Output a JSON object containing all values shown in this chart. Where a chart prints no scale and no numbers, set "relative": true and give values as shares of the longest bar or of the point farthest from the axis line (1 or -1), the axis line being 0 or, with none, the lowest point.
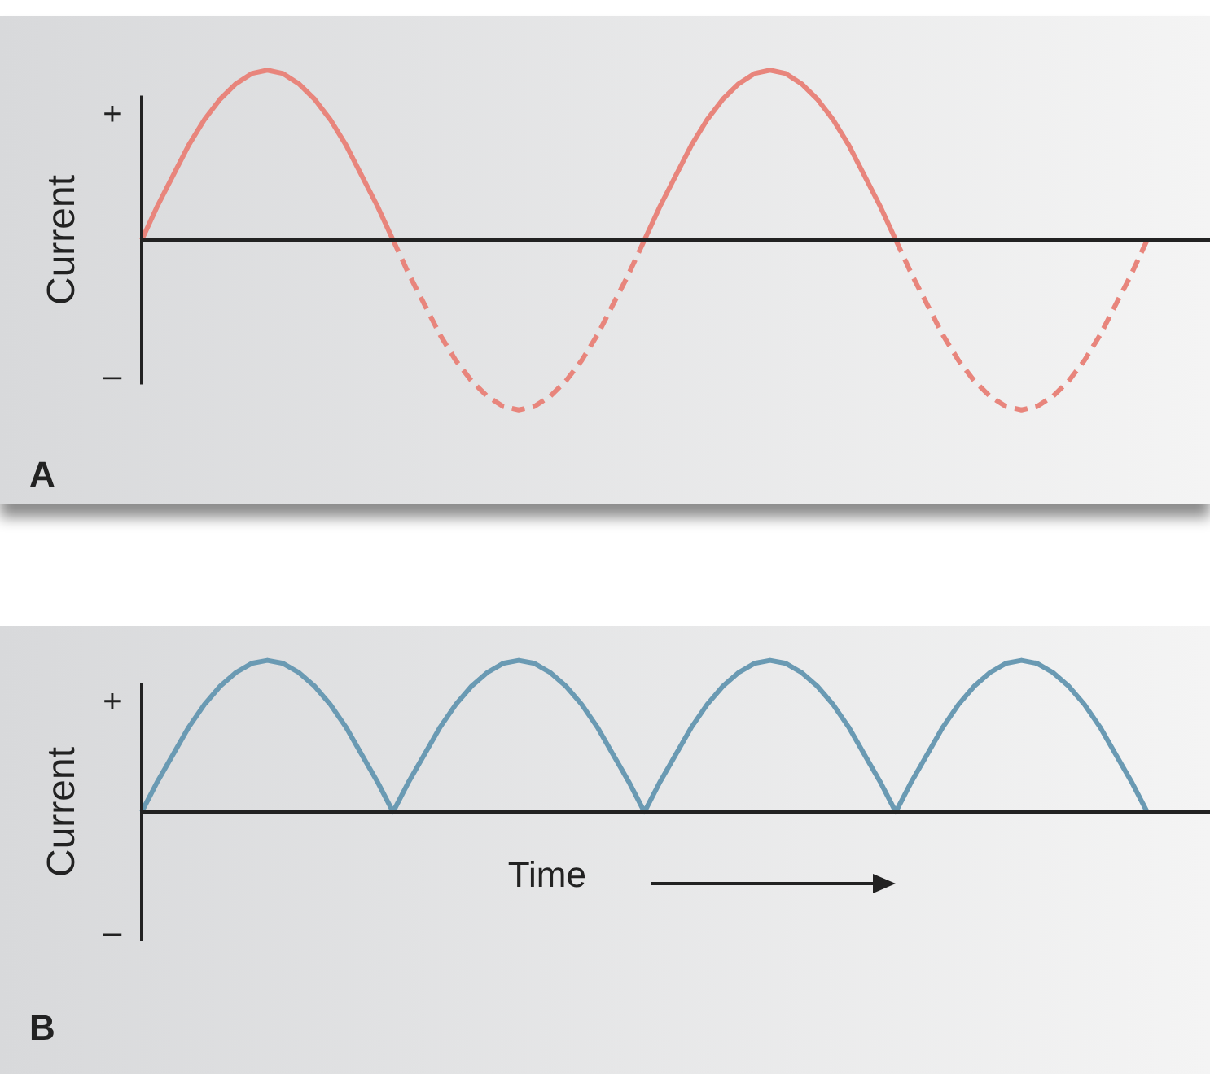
{
  "chart_data": [
    {
      "type": "line",
      "title": "A",
      "ylabel": "Current",
      "annotations": [
        "+",
        "–"
      ],
      "relative": true,
      "legend": false,
      "categories": [
        null,
        null,
        null,
        null,
        null,
        null,
        null,
        null,
        null,
        null,
        null,
        null,
        null,
        null,
        null,
        null,
        null,
        null,
        null,
        null,
        null,
        null,
        null,
        null,
        null,
        null,
        null,
        null,
        null,
        null,
        null,
        null,
        null,
        null,
        null,
        null,
        null,
        null,
        null,
        null,
        null,
        null,
        null,
        null,
        null,
        null,
        null,
        null,
        null,
        null,
        null,
        null,
        null,
        null,
        null,
        null,
        null,
        null,
        null,
        null,
        null,
        null,
        null,
        null,
        null,
        null,
        null,
        null,
        null
      ],
      "series": [
        {
          "color": "#e8857c",
          "line_style": "solid",
          "values": [
            0,
            0.2,
            0.38,
            0.56,
            0.71,
            0.83,
            0.92,
            0.98,
            1,
            0.98,
            0.92,
            0.83,
            0.71,
            0.56,
            0.38,
            0.2,
            0,
            null,
            null,
            null,
            null,
            null,
            null,
            null,
            null,
            null,
            null,
            null,
            null,
            null,
            null,
            null,
            null,
            null,
            null,
            null,
            null,
            null,
            null,
            null,
            null,
            null,
            null,
            null,
            null,
            null,
            null,
            null,
            null,
            null,
            null,
            null,
            null,
            null,
            null,
            null,
            null,
            null,
            null,
            null,
            null,
            null,
            null,
            null,
            null,
            null,
            null,
            null,
            null
          ]
        },
        {
          "color": "#e8857c",
          "line_style": "dashed",
          "values": [
            null,
            null,
            null,
            null,
            null,
            null,
            null,
            null,
            null,
            null,
            null,
            null,
            null,
            null,
            null,
            null,
            0,
            -0.2,
            -0.38,
            -0.56,
            -0.71,
            -0.83,
            -0.92,
            -0.98,
            -1,
            -0.98,
            -0.92,
            -0.83,
            -0.71,
            -0.56,
            -0.38,
            -0.2,
            0,
            null,
            null,
            null,
            null,
            null,
            null,
            null,
            null,
            null,
            null,
            null,
            null,
            null,
            null,
            null,
            null,
            null,
            null,
            null,
            null,
            null,
            null,
            null,
            null,
            null,
            null,
            null,
            null,
            null,
            null,
            null,
            null,
            null,
            null,
            null,
            null
          ]
        },
        {
          "color": "#e8857c",
          "line_style": "solid",
          "values": [
            null,
            null,
            null,
            null,
            null,
            null,
            null,
            null,
            null,
            null,
            null,
            null,
            null,
            null,
            null,
            null,
            null,
            null,
            null,
            null,
            null,
            null,
            null,
            null,
            null,
            null,
            null,
            null,
            null,
            null,
            null,
            null,
            0,
            0.2,
            0.38,
            0.56,
            0.71,
            0.83,
            0.92,
            0.98,
            1,
            0.98,
            0.92,
            0.83,
            0.71,
            0.56,
            0.38,
            0.2,
            0,
            null,
            null,
            null,
            null,
            null,
            null,
            null,
            null,
            null,
            null,
            null,
            null,
            null,
            null,
            null,
            null,
            null,
            null,
            null,
            null
          ]
        },
        {
          "color": "#e8857c",
          "line_style": "dashed",
          "values": [
            null,
            null,
            null,
            null,
            null,
            null,
            null,
            null,
            null,
            null,
            null,
            null,
            null,
            null,
            null,
            null,
            null,
            null,
            null,
            null,
            null,
            null,
            null,
            null,
            null,
            null,
            null,
            null,
            null,
            null,
            null,
            null,
            null,
            null,
            null,
            null,
            null,
            null,
            null,
            null,
            null,
            null,
            null,
            null,
            null,
            null,
            null,
            null,
            0,
            -0.2,
            -0.38,
            -0.56,
            -0.71,
            -0.83,
            -0.92,
            -0.98,
            -1,
            -0.98,
            -0.92,
            -0.83,
            -0.71,
            -0.56,
            -0.38,
            -0.2,
            0,
            null,
            null,
            null,
            null
          ]
        }
      ]
    },
    {
      "type": "line",
      "title": "B",
      "ylabel": "Current",
      "xlabel": "Time",
      "annotations": [
        "+",
        "–"
      ],
      "relative": true,
      "legend": false,
      "categories": [
        null,
        null,
        null,
        null,
        null,
        null,
        null,
        null,
        null,
        null,
        null,
        null,
        null,
        null,
        null,
        null,
        null,
        null,
        null,
        null,
        null,
        null,
        null,
        null,
        null,
        null,
        null,
        null,
        null,
        null,
        null,
        null,
        null,
        null,
        null,
        null,
        null,
        null,
        null,
        null,
        null,
        null,
        null,
        null,
        null,
        null,
        null,
        null,
        null,
        null,
        null,
        null,
        null,
        null,
        null,
        null,
        null,
        null,
        null,
        null,
        null,
        null,
        null,
        null,
        null,
        null,
        null,
        null,
        null
      ],
      "series": [
        {
          "color": "#6a9ab3",
          "line_style": "solid",
          "values": [
            0,
            0.2,
            0.38,
            0.56,
            0.71,
            0.83,
            0.92,
            0.98,
            1,
            0.98,
            0.92,
            0.83,
            0.71,
            0.56,
            0.38,
            0.2,
            0,
            0.2,
            0.38,
            0.56,
            0.71,
            0.83,
            0.92,
            0.98,
            1,
            0.98,
            0.92,
            0.83,
            0.71,
            0.56,
            0.38,
            0.2,
            0,
            0.2,
            0.38,
            0.56,
            0.71,
            0.83,
            0.92,
            0.98,
            1,
            0.98,
            0.92,
            0.83,
            0.71,
            0.56,
            0.38,
            0.2,
            0,
            0.2,
            0.38,
            0.56,
            0.71,
            0.83,
            0.92,
            0.98,
            1,
            0.98,
            0.92,
            0.83,
            0.71,
            0.56,
            0.38,
            0.2,
            0,
            null,
            null,
            null,
            null
          ]
        }
      ]
    }
  ]
}
